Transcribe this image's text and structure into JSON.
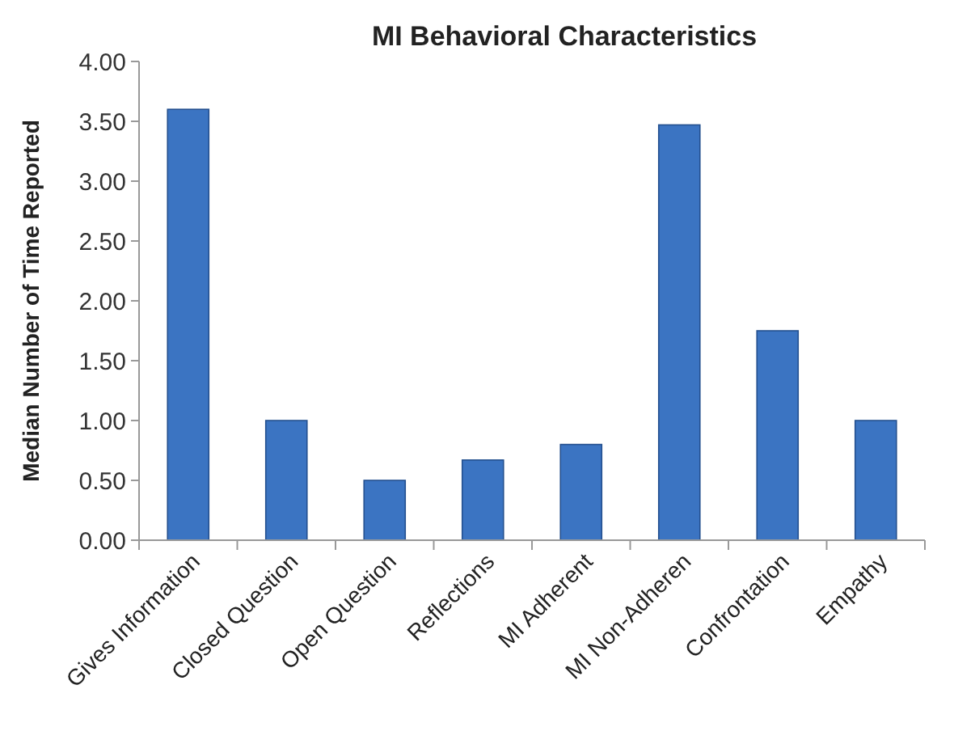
{
  "chart_data": {
    "type": "bar",
    "title": "MI Behavioral Characteristics",
    "ylabel": "Median Number of Time Reported",
    "categories": [
      "Gives Information",
      "Closed Question",
      "Open Question",
      "Reflections",
      "MI Adherent",
      "MI Non-Adheren",
      "Confrontation",
      "Empathy"
    ],
    "values": [
      3.6,
      1.0,
      0.5,
      0.67,
      0.8,
      3.47,
      1.75,
      1.0
    ],
    "color": "#3b74c2",
    "ylim": [
      0,
      4
    ],
    "yticks": [
      {
        "value": 0,
        "label": "0.00"
      },
      {
        "value": 0.5,
        "label": "0.50"
      },
      {
        "value": 1,
        "label": "1.00"
      },
      {
        "value": 1.5,
        "label": "1.50"
      },
      {
        "value": 2,
        "label": "2.00"
      },
      {
        "value": 2.5,
        "label": "2.50"
      },
      {
        "value": 3,
        "label": "3.00"
      },
      {
        "value": 3.5,
        "label": "3.50"
      },
      {
        "value": 4,
        "label": "4.00"
      }
    ],
    "grid": false
  }
}
